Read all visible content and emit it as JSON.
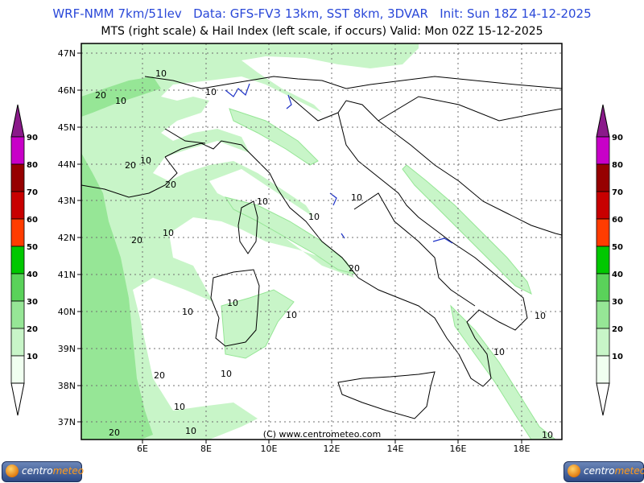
{
  "header": {
    "line1": "WRF-NMM 7km/51lev   Data: GFS-FV3 13km, SST 8km, 3DVAR   Init: Sun 18Z 14-12-2025",
    "line2": "MTS (right scale) & Hail Index (left scale, if occurs) Valid: Mon 02Z 15-12-2025"
  },
  "map": {
    "lat_labels": [
      "47N",
      "46N",
      "45N",
      "44N",
      "43N",
      "42N",
      "41N",
      "40N",
      "39N",
      "38N",
      "37N"
    ],
    "lon_labels": [
      "6E",
      "8E",
      "10E",
      "12E",
      "14E",
      "16E",
      "18E"
    ],
    "copyright": "(C) www.centrometeo.com",
    "contour_labels": [
      {
        "text": "10"
      },
      {
        "text": "20"
      },
      {
        "text": "10"
      },
      {
        "text": "10"
      },
      {
        "text": "20"
      },
      {
        "text": "10"
      },
      {
        "text": "20"
      },
      {
        "text": "10"
      },
      {
        "text": "10"
      },
      {
        "text": "20"
      },
      {
        "text": "10"
      },
      {
        "text": "20"
      },
      {
        "text": "10"
      },
      {
        "text": "10"
      },
      {
        "text": "10"
      },
      {
        "text": "10"
      },
      {
        "text": "10"
      },
      {
        "text": "20"
      },
      {
        "text": "10"
      },
      {
        "text": "20"
      },
      {
        "text": "10"
      },
      {
        "text": "10"
      },
      {
        "text": "10"
      },
      {
        "text": "10"
      }
    ]
  },
  "legend_left": {
    "levels": [
      "90",
      "80",
      "70",
      "60",
      "50",
      "40",
      "30",
      "20",
      "10"
    ],
    "colors": [
      "#c800c8",
      "#960000",
      "#c80000",
      "#ff3c00",
      "#00c800",
      "#5ad25a",
      "#96e696",
      "#c8f5c8",
      "#f0fff0"
    ],
    "top_color": "#8a1a8a"
  },
  "legend_right": {
    "levels": [
      "90",
      "80",
      "70",
      "60",
      "50",
      "40",
      "30",
      "20",
      "10"
    ],
    "colors": [
      "#c800c8",
      "#960000",
      "#c80000",
      "#ff3c00",
      "#00c800",
      "#5ad25a",
      "#96e696",
      "#c8f5c8",
      "#f0fff0"
    ],
    "top_color": "#8a1a8a"
  },
  "logos": {
    "left_text_a": "centro",
    "left_text_b": "meteo",
    "right_text_a": "centro",
    "right_text_b": "meteo"
  }
}
